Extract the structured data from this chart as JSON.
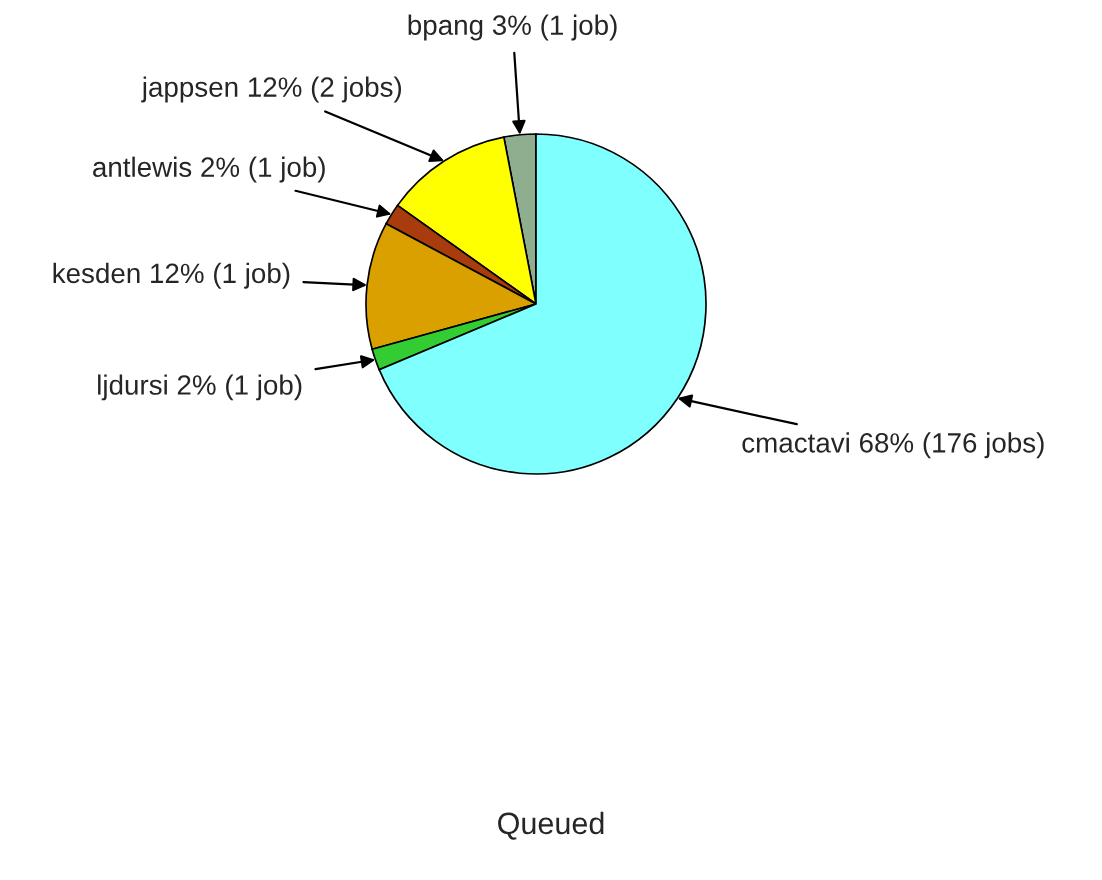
{
  "chart_data": {
    "type": "pie",
    "title": "Queued",
    "categories": [
      "bpang",
      "jappsen",
      "antlewis",
      "kesden",
      "ljdursi",
      "cmactavi"
    ],
    "values": [
      3,
      12,
      2,
      12,
      2,
      68
    ],
    "value_labels": [
      "3% (1 job)",
      "12% (2 jobs)",
      "2% (1 job)",
      "12% (1 job)",
      "2% (1 job)",
      "68% (176 jobs)"
    ],
    "colors": [
      "#8fae8f",
      "#ffff00",
      "#a83c0c",
      "#d9a000",
      "#33cc33",
      "#80ffff"
    ],
    "legend": false
  }
}
